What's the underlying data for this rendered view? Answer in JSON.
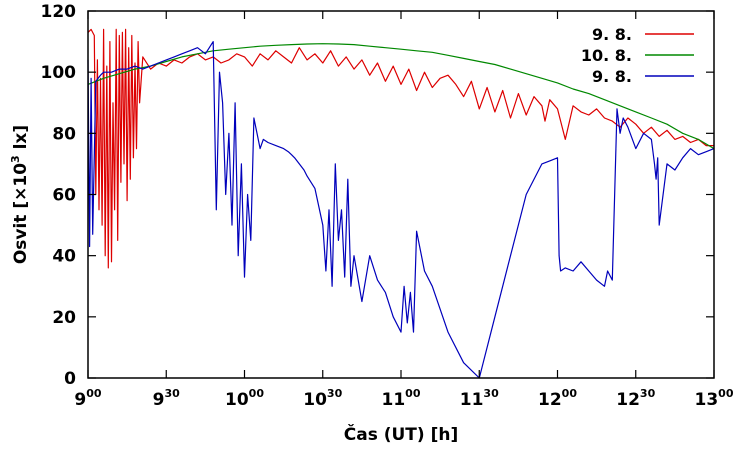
{
  "chart_data": {
    "type": "line",
    "xlabel": "Čas (UT) [h]",
    "ylabel_parts": {
      "main": "Osvit [",
      "times": "×10",
      "sup": "3",
      "unit": " lx]"
    },
    "xlim": [
      9.0,
      13.0
    ],
    "ylim": [
      0,
      120
    ],
    "y_ticks": [
      0,
      20,
      40,
      60,
      80,
      100,
      120
    ],
    "x_ticks": [
      {
        "value": 9.0,
        "hour": "9",
        "min": "00"
      },
      {
        "value": 9.5,
        "hour": "9",
        "min": "30"
      },
      {
        "value": 10.0,
        "hour": "10",
        "min": "00"
      },
      {
        "value": 10.5,
        "hour": "10",
        "min": "30"
      },
      {
        "value": 11.0,
        "hour": "11",
        "min": "00"
      },
      {
        "value": 11.5,
        "hour": "11",
        "min": "30"
      },
      {
        "value": 12.0,
        "hour": "12",
        "min": "00"
      },
      {
        "value": 12.5,
        "hour": "12",
        "min": "30"
      },
      {
        "value": 13.0,
        "hour": "13",
        "min": "00"
      }
    ],
    "grid": false,
    "legend_position": "top-right",
    "series": [
      {
        "name": "9. 8.",
        "color": "#dd0000",
        "x": [
          9.0,
          9.02,
          9.04,
          9.05,
          9.06,
          9.07,
          9.08,
          9.09,
          9.1,
          9.11,
          9.12,
          9.13,
          9.14,
          9.15,
          9.16,
          9.17,
          9.18,
          9.19,
          9.2,
          9.21,
          9.22,
          9.23,
          9.24,
          9.25,
          9.26,
          9.27,
          9.28,
          9.29,
          9.3,
          9.31,
          9.32,
          9.33,
          9.35,
          9.4,
          9.45,
          9.5,
          9.55,
          9.6,
          9.65,
          9.7,
          9.75,
          9.8,
          9.85,
          9.9,
          9.95,
          10.0,
          10.05,
          10.1,
          10.15,
          10.2,
          10.25,
          10.3,
          10.35,
          10.4,
          10.45,
          10.5,
          10.55,
          10.6,
          10.65,
          10.7,
          10.75,
          10.8,
          10.85,
          10.9,
          10.95,
          11.0,
          11.05,
          11.1,
          11.15,
          11.2,
          11.25,
          11.3,
          11.35,
          11.4,
          11.45,
          11.5,
          11.55,
          11.6,
          11.65,
          11.7,
          11.75,
          11.8,
          11.85,
          11.9,
          11.92,
          11.95,
          12.0,
          12.05,
          12.1,
          12.15,
          12.2,
          12.25,
          12.3,
          12.35,
          12.4,
          12.45,
          12.5,
          12.55,
          12.6,
          12.65,
          12.7,
          12.75,
          12.8,
          12.85,
          12.9,
          12.95,
          13.0
        ],
        "y": [
          113,
          114,
          112,
          60,
          104,
          55,
          98,
          50,
          114,
          40,
          102,
          36,
          110,
          38,
          90,
          55,
          114,
          45,
          112,
          64,
          113,
          70,
          114,
          58,
          108,
          65,
          112,
          72,
          103,
          75,
          110,
          90,
          105,
          101,
          103,
          102,
          104,
          103,
          105,
          106,
          104,
          105,
          103,
          104,
          106,
          105,
          102,
          106,
          104,
          107,
          105,
          103,
          108,
          104,
          106,
          103,
          107,
          102,
          105,
          101,
          104,
          99,
          103,
          97,
          102,
          96,
          101,
          94,
          100,
          95,
          98,
          99,
          96,
          92,
          97,
          88,
          95,
          87,
          94,
          85,
          93,
          86,
          92,
          89,
          84,
          91,
          88,
          78,
          89,
          87,
          86,
          88,
          85,
          84,
          82,
          85,
          83,
          80,
          82,
          79,
          81,
          78,
          79,
          77,
          78,
          76,
          76
        ]
      },
      {
        "name": "10. 8.",
        "color": "#008800",
        "x": [
          9.0,
          9.1,
          9.2,
          9.3,
          9.4,
          9.5,
          9.6,
          9.7,
          9.8,
          9.9,
          10.0,
          10.1,
          10.2,
          10.3,
          10.4,
          10.5,
          10.6,
          10.7,
          10.8,
          10.9,
          11.0,
          11.1,
          11.2,
          11.3,
          11.4,
          11.5,
          11.6,
          11.7,
          11.8,
          11.9,
          12.0,
          12.1,
          12.2,
          12.3,
          12.4,
          12.5,
          12.6,
          12.7,
          12.8,
          12.9,
          13.0
        ],
        "y": [
          96,
          98,
          99.5,
          101,
          102,
          103.5,
          105,
          106,
          107,
          107.5,
          108,
          108.5,
          108.8,
          109,
          109.2,
          109.3,
          109.2,
          109,
          108.5,
          108,
          107.5,
          107,
          106.5,
          105.5,
          104.5,
          103.5,
          102.5,
          101,
          99.5,
          98,
          96.5,
          94.5,
          93,
          91,
          89,
          87,
          85,
          83,
          80,
          78,
          75
        ]
      },
      {
        "name": "9. 8.",
        "color": "#0000bb",
        "x": [
          9.0,
          9.01,
          9.02,
          9.03,
          9.05,
          9.08,
          9.1,
          9.15,
          9.2,
          9.25,
          9.3,
          9.35,
          9.4,
          9.45,
          9.5,
          9.55,
          9.6,
          9.65,
          9.7,
          9.75,
          9.8,
          9.82,
          9.84,
          9.86,
          9.88,
          9.9,
          9.92,
          9.94,
          9.96,
          9.98,
          10.0,
          10.02,
          10.04,
          10.06,
          10.08,
          10.1,
          10.12,
          10.15,
          10.2,
          10.25,
          10.28,
          10.3,
          10.32,
          10.35,
          10.38,
          10.4,
          10.45,
          10.5,
          10.52,
          10.54,
          10.56,
          10.58,
          10.6,
          10.62,
          10.64,
          10.66,
          10.68,
          10.7,
          10.75,
          10.8,
          10.85,
          10.9,
          10.95,
          11.0,
          11.02,
          11.04,
          11.06,
          11.08,
          11.1,
          11.15,
          11.2,
          11.3,
          11.4,
          11.5,
          11.6,
          11.7,
          11.8,
          11.9,
          11.95,
          12.0,
          12.01,
          12.02,
          12.05,
          12.1,
          12.15,
          12.2,
          12.25,
          12.3,
          12.32,
          12.35,
          12.38,
          12.4,
          12.42,
          12.45,
          12.5,
          12.55,
          12.6,
          12.62,
          12.63,
          12.64,
          12.65,
          12.7,
          12.75,
          12.8,
          12.85,
          12.9,
          12.95,
          13.0
        ],
        "y": [
          104,
          43,
          98,
          47,
          97,
          99,
          100,
          100,
          101,
          101,
          102,
          101,
          102,
          103,
          104,
          105,
          106,
          107,
          108,
          106,
          110,
          55,
          100,
          90,
          60,
          80,
          50,
          90,
          40,
          70,
          33,
          60,
          45,
          85,
          80,
          75,
          78,
          77,
          76,
          75,
          74,
          73,
          72,
          70,
          68,
          66,
          62,
          50,
          35,
          55,
          30,
          70,
          45,
          55,
          33,
          65,
          30,
          40,
          25,
          40,
          32,
          28,
          20,
          15,
          30,
          18,
          28,
          15,
          48,
          35,
          30,
          15,
          5,
          0,
          20,
          40,
          60,
          70,
          71,
          72,
          40,
          35,
          36,
          35,
          38,
          35,
          32,
          30,
          35,
          32,
          88,
          80,
          85,
          82,
          75,
          80,
          78,
          70,
          65,
          72,
          50,
          70,
          68,
          72,
          75,
          73,
          74,
          75
        ]
      }
    ]
  }
}
